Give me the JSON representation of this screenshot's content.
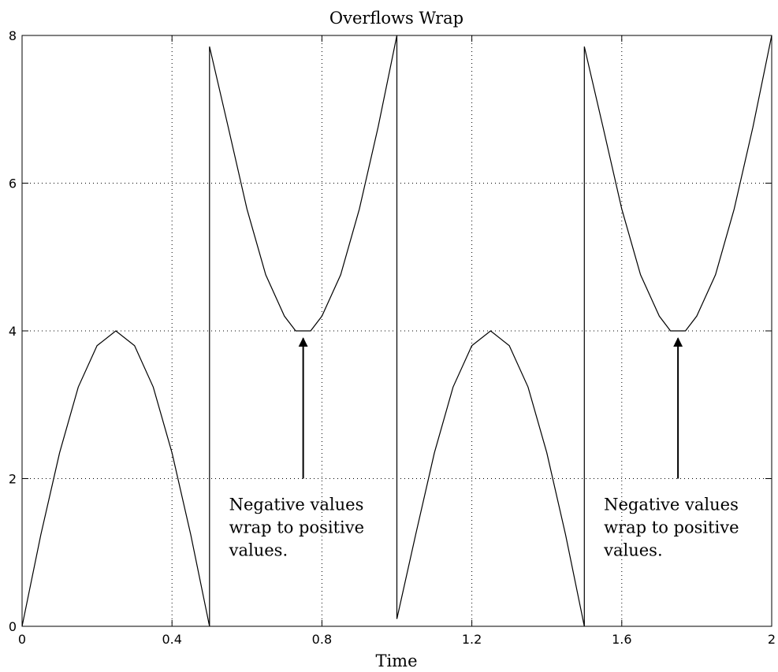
{
  "chart_data": {
    "type": "line",
    "title": "Overflows Wrap",
    "xlabel": "Time",
    "ylabel": "",
    "xlim": [
      0,
      2
    ],
    "ylim": [
      0,
      8
    ],
    "xticks": [
      0,
      0.4,
      0.8,
      1.2,
      1.6,
      2
    ],
    "xtick_labels": [
      "0",
      "0.4",
      "0.8",
      "1.2",
      "1.6",
      "2"
    ],
    "yticks": [
      0,
      2,
      4,
      6,
      8
    ],
    "ytick_labels": [
      "0",
      "2",
      "4",
      "6",
      "8"
    ],
    "grid": true,
    "series": [
      {
        "x": [
          0,
          0.05,
          0.1,
          0.15,
          0.2,
          0.25,
          0.3,
          0.35,
          0.4,
          0.45,
          0.5,
          0.5,
          0.55,
          0.6,
          0.65,
          0.7,
          0.73,
          0.75,
          0.77,
          0.8,
          0.85,
          0.9,
          0.95,
          1.0,
          1.0,
          1.05,
          1.1,
          1.15,
          1.2,
          1.25,
          1.3,
          1.35,
          1.4,
          1.45,
          1.5,
          1.5,
          1.55,
          1.6,
          1.65,
          1.7,
          1.73,
          1.75,
          1.77,
          1.8,
          1.85,
          1.9,
          1.95,
          2.0
        ],
        "y": [
          0,
          1.24,
          2.35,
          3.24,
          3.8,
          4.0,
          3.8,
          3.24,
          2.35,
          1.24,
          0,
          7.85,
          6.76,
          5.65,
          4.76,
          4.2,
          4.0,
          4.0,
          4.0,
          4.2,
          4.76,
          5.65,
          6.76,
          8.0,
          0.1,
          1.24,
          2.35,
          3.24,
          3.8,
          4.0,
          3.8,
          3.24,
          2.35,
          1.24,
          0,
          7.85,
          6.76,
          5.65,
          4.76,
          4.2,
          4.0,
          4.0,
          4.0,
          4.2,
          4.76,
          5.65,
          6.76,
          8.0
        ]
      }
    ],
    "annotations": [
      {
        "lines": [
          "Negative values",
          "wrap to positive",
          "values."
        ],
        "arrow_x": 0.75,
        "arrow_y_from": 2,
        "arrow_y_to": 3.9
      },
      {
        "lines": [
          "Negative values",
          "wrap to positive",
          "values."
        ],
        "arrow_x": 1.75,
        "arrow_y_from": 2,
        "arrow_y_to": 3.9
      }
    ]
  }
}
